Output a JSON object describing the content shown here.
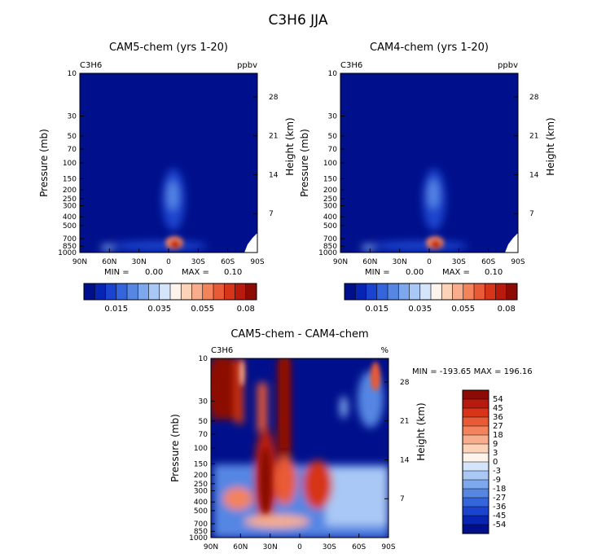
{
  "figure": {
    "title": "C3H6 JJA"
  },
  "chart_data": [
    {
      "type": "heatmap",
      "id": "cam5",
      "title": "CAM5-chem (yrs 1-20)",
      "species": "C3H6",
      "units": "ppbv",
      "ylabel": "Pressure (mb)",
      "ylabel_right": "Height (km)",
      "x_ticks": [
        "90N",
        "60N",
        "30N",
        "0",
        "30S",
        "60S",
        "90S"
      ],
      "y_ticks": [
        10,
        30,
        50,
        70,
        100,
        150,
        200,
        250,
        300,
        400,
        500,
        700,
        850,
        1000
      ],
      "height_ticks": [
        28,
        21,
        14,
        7
      ],
      "stats": {
        "min_label": "MIN =",
        "min_value": "0.00",
        "max_label": "MAX =",
        "max_value": "0.10"
      },
      "colorbar": {
        "labels": [
          "0.015",
          "0.035",
          "0.055",
          "0.08"
        ],
        "colors": [
          "#00108c",
          "#0725b2",
          "#1a44cf",
          "#3465db",
          "#5586e3",
          "#7ea8ed",
          "#a9c8f5",
          "#d4e4fa",
          "#fff4ec",
          "#fcd2b8",
          "#f8ae8c",
          "#f3835d",
          "#e95a36",
          "#d63519",
          "#b81a0e",
          "#8c0b05"
        ]
      }
    },
    {
      "type": "heatmap",
      "id": "cam4",
      "title": "CAM4-chem (yrs 1-20)",
      "species": "C3H6",
      "units": "ppbv",
      "ylabel": "Pressure (mb)",
      "ylabel_right": "Height (km)",
      "x_ticks": [
        "90N",
        "60N",
        "30N",
        "0",
        "30S",
        "60S",
        "90S"
      ],
      "y_ticks": [
        10,
        30,
        50,
        70,
        100,
        150,
        200,
        250,
        300,
        400,
        500,
        700,
        850,
        1000
      ],
      "height_ticks": [
        28,
        21,
        14,
        7
      ],
      "stats": {
        "min_label": "MIN =",
        "min_value": "0.00",
        "max_label": "MAX =",
        "max_value": "0.10"
      },
      "colorbar": {
        "labels": [
          "0.015",
          "0.035",
          "0.055",
          "0.08"
        ],
        "colors": [
          "#00108c",
          "#0725b2",
          "#1a44cf",
          "#3465db",
          "#5586e3",
          "#7ea8ed",
          "#a9c8f5",
          "#d4e4fa",
          "#fff4ec",
          "#fcd2b8",
          "#f8ae8c",
          "#f3835d",
          "#e95a36",
          "#d63519",
          "#b81a0e",
          "#8c0b05"
        ]
      }
    },
    {
      "type": "heatmap",
      "id": "diff",
      "title": "CAM5-chem - CAM4-chem",
      "species": "C3H6",
      "units": "%",
      "ylabel": "Pressure (mb)",
      "ylabel_right": "Height (km)",
      "x_ticks": [
        "90N",
        "60N",
        "30N",
        "0",
        "30S",
        "60S",
        "90S"
      ],
      "y_ticks": [
        10,
        30,
        50,
        70,
        100,
        150,
        200,
        250,
        300,
        400,
        500,
        700,
        850,
        1000
      ],
      "height_ticks": [
        28,
        21,
        14,
        7
      ],
      "stats": {
        "text": "MIN = -193.65   MAX = 196.16"
      },
      "colorbar": {
        "labels": [
          "54",
          "45",
          "36",
          "27",
          "18",
          "9",
          "3",
          "0",
          "-3",
          "-9",
          "-18",
          "-27",
          "-36",
          "-45",
          "-54"
        ],
        "colors": [
          "#8c0b05",
          "#b81a0e",
          "#d63519",
          "#e95a36",
          "#f3835d",
          "#f8ae8c",
          "#fcd2b8",
          "#fff4ec",
          "#d4e4fa",
          "#a9c8f5",
          "#7ea8ed",
          "#5586e3",
          "#3465db",
          "#1a44cf",
          "#0725b2",
          "#00108c"
        ]
      }
    }
  ]
}
